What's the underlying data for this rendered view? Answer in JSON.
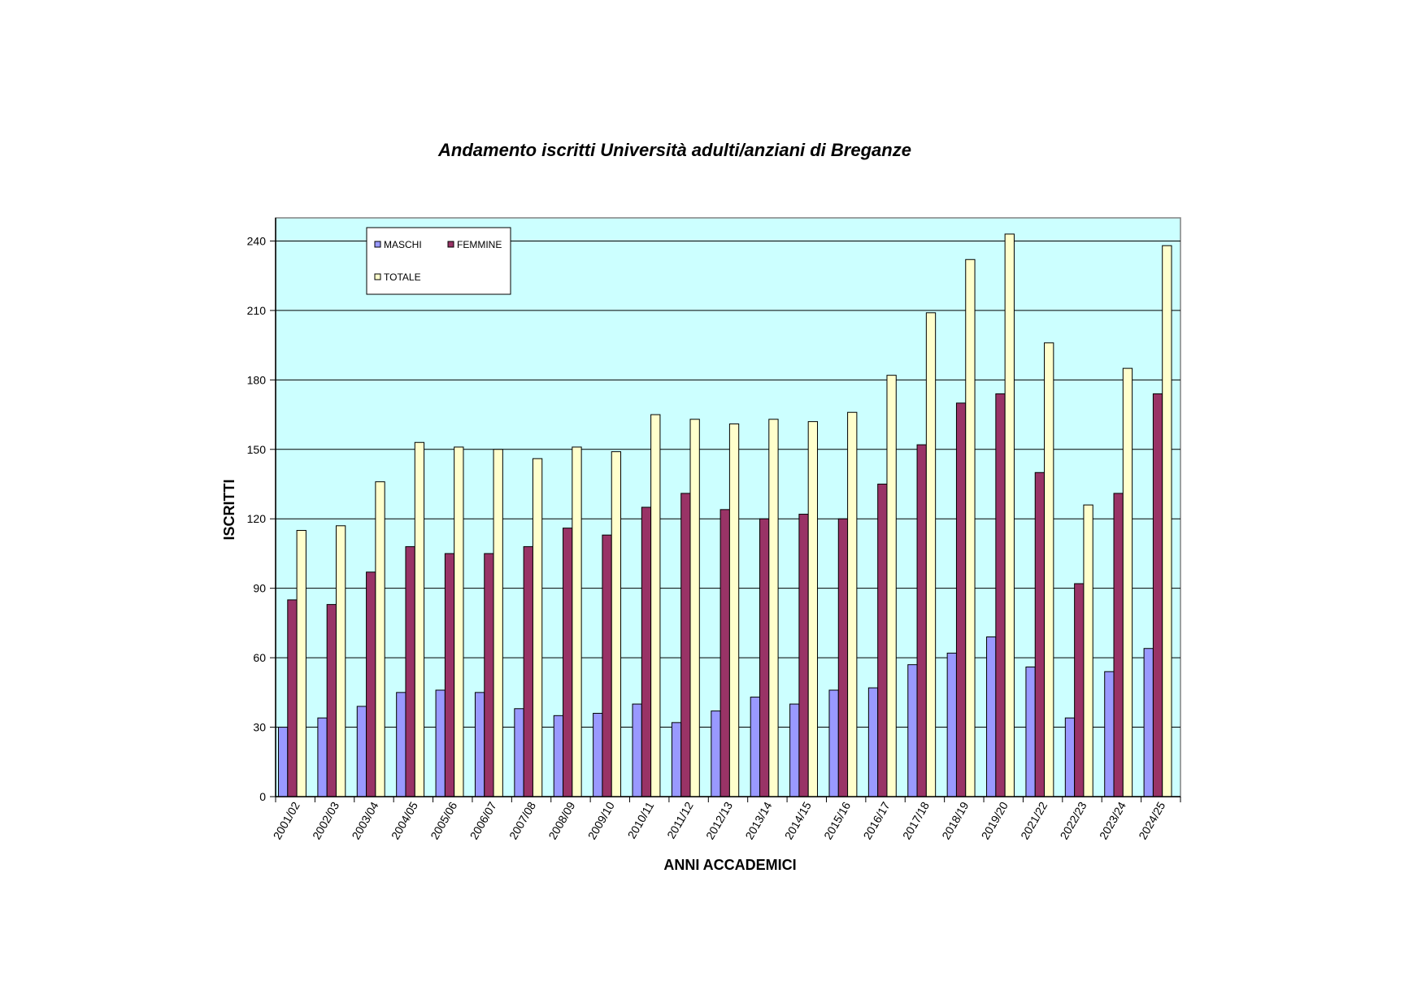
{
  "chart_data": {
    "type": "bar",
    "title": "Andamento iscritti Università adulti/anziani di Breganze",
    "xlabel": "ANNI ACCADEMICI",
    "ylabel": "ISCRITTI",
    "ylim": [
      0,
      250
    ],
    "yticks": [
      0,
      30,
      60,
      90,
      120,
      150,
      180,
      210,
      240
    ],
    "grid": true,
    "legend_position": "top-left",
    "background_color": "#ccffff",
    "categories": [
      "2001/02",
      "2002/03",
      "2003/04",
      "2004/05",
      "2005/06",
      "2006/07",
      "2007/08",
      "2008/09",
      "2009/10",
      "2010/11",
      "2011/12",
      "2012/13",
      "2013/14",
      "2014/15",
      "2015/16",
      "2016/17",
      "2017/18",
      "2018/19",
      "2019/20",
      "2021/22",
      "2022/23",
      "2023/24",
      "2024/25"
    ],
    "series": [
      {
        "name": "MASCHI",
        "color": "#9999ff",
        "values": [
          30,
          34,
          39,
          45,
          46,
          45,
          38,
          35,
          36,
          40,
          32,
          37,
          43,
          40,
          46,
          47,
          57,
          62,
          69,
          56,
          34,
          54,
          64
        ]
      },
      {
        "name": "FEMMINE",
        "color": "#993366",
        "values": [
          85,
          83,
          97,
          108,
          105,
          105,
          108,
          116,
          113,
          125,
          131,
          124,
          120,
          122,
          120,
          135,
          152,
          170,
          174,
          140,
          92,
          131,
          174
        ]
      },
      {
        "name": "TOTALE",
        "color": "#ffffcc",
        "values": [
          115,
          117,
          136,
          153,
          151,
          150,
          146,
          151,
          149,
          165,
          163,
          161,
          163,
          162,
          166,
          182,
          209,
          232,
          243,
          196,
          126,
          185,
          238
        ]
      }
    ]
  }
}
